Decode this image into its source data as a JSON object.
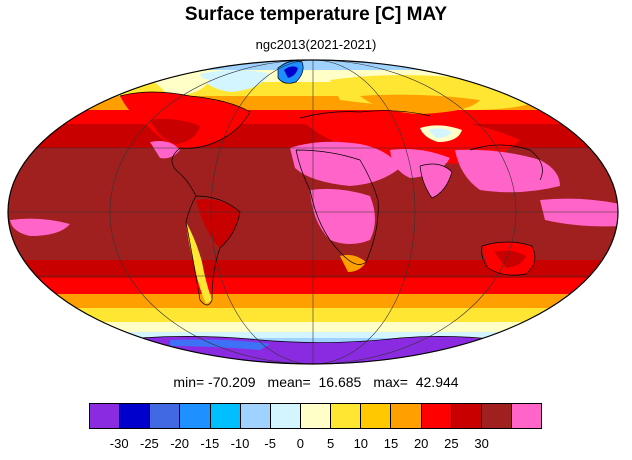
{
  "title": "Surface temperature [C] MAY",
  "subtitle": "ngc2013(2021-2021)",
  "stats": {
    "min": "min= -70.209",
    "mean": "mean=  16.685",
    "max": "max=  42.944"
  },
  "map": {
    "projection": "mollweide",
    "graticule": true
  },
  "legend": {
    "colors": [
      "#8a2be2",
      "#0000cd",
      "#4169e1",
      "#1e90ff",
      "#00bfff",
      "#a0d2ff",
      "#d2f5ff",
      "#ffffc8",
      "#ffe632",
      "#ffc800",
      "#ffa000",
      "#ff0000",
      "#c80000",
      "#a02020",
      "#ff64c8"
    ],
    "ticks": [
      "-30",
      "-25",
      "-20",
      "-15",
      "-10",
      "-5",
      "0",
      "5",
      "10",
      "15",
      "20",
      "25",
      "30"
    ]
  }
}
